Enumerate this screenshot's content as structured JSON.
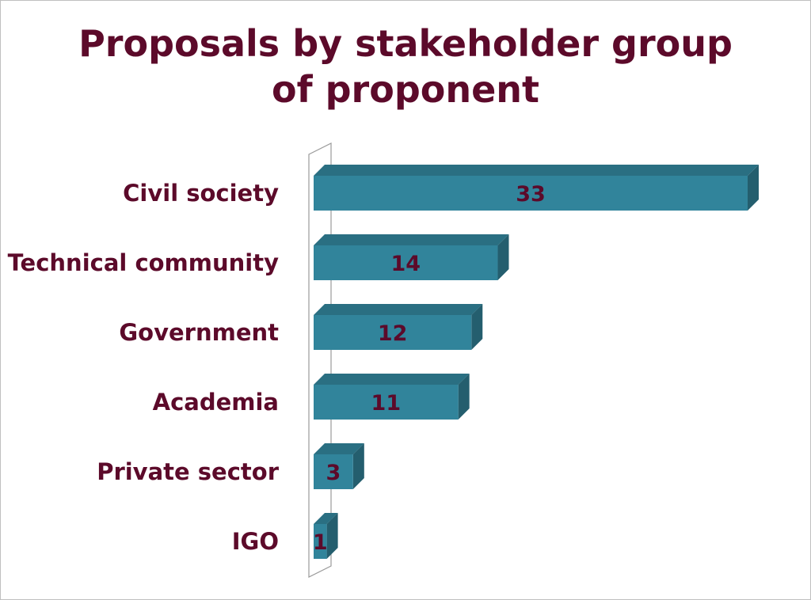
{
  "chart_data": {
    "type": "bar",
    "orientation": "horizontal",
    "title": "Proposals by stakeholder group of proponent",
    "title_lines": [
      "Proposals by stakeholder group",
      "of proponent"
    ],
    "categories": [
      "Civil society",
      "Technical community",
      "Government",
      "Academia",
      "Private sector",
      "IGO"
    ],
    "values": [
      33,
      14,
      12,
      11,
      3,
      1
    ],
    "data_labels": [
      "33",
      "14",
      "12",
      "11",
      "3",
      "1"
    ],
    "xlim": [
      0,
      33
    ],
    "grid": false,
    "legend": "none",
    "style": "3d"
  },
  "colors": {
    "bar_front": "#31849b",
    "bar_top": "#2a6f82",
    "bar_side": "#245e6e",
    "text": "#5c0a2a",
    "axis_wall": "#9a9a9a"
  }
}
